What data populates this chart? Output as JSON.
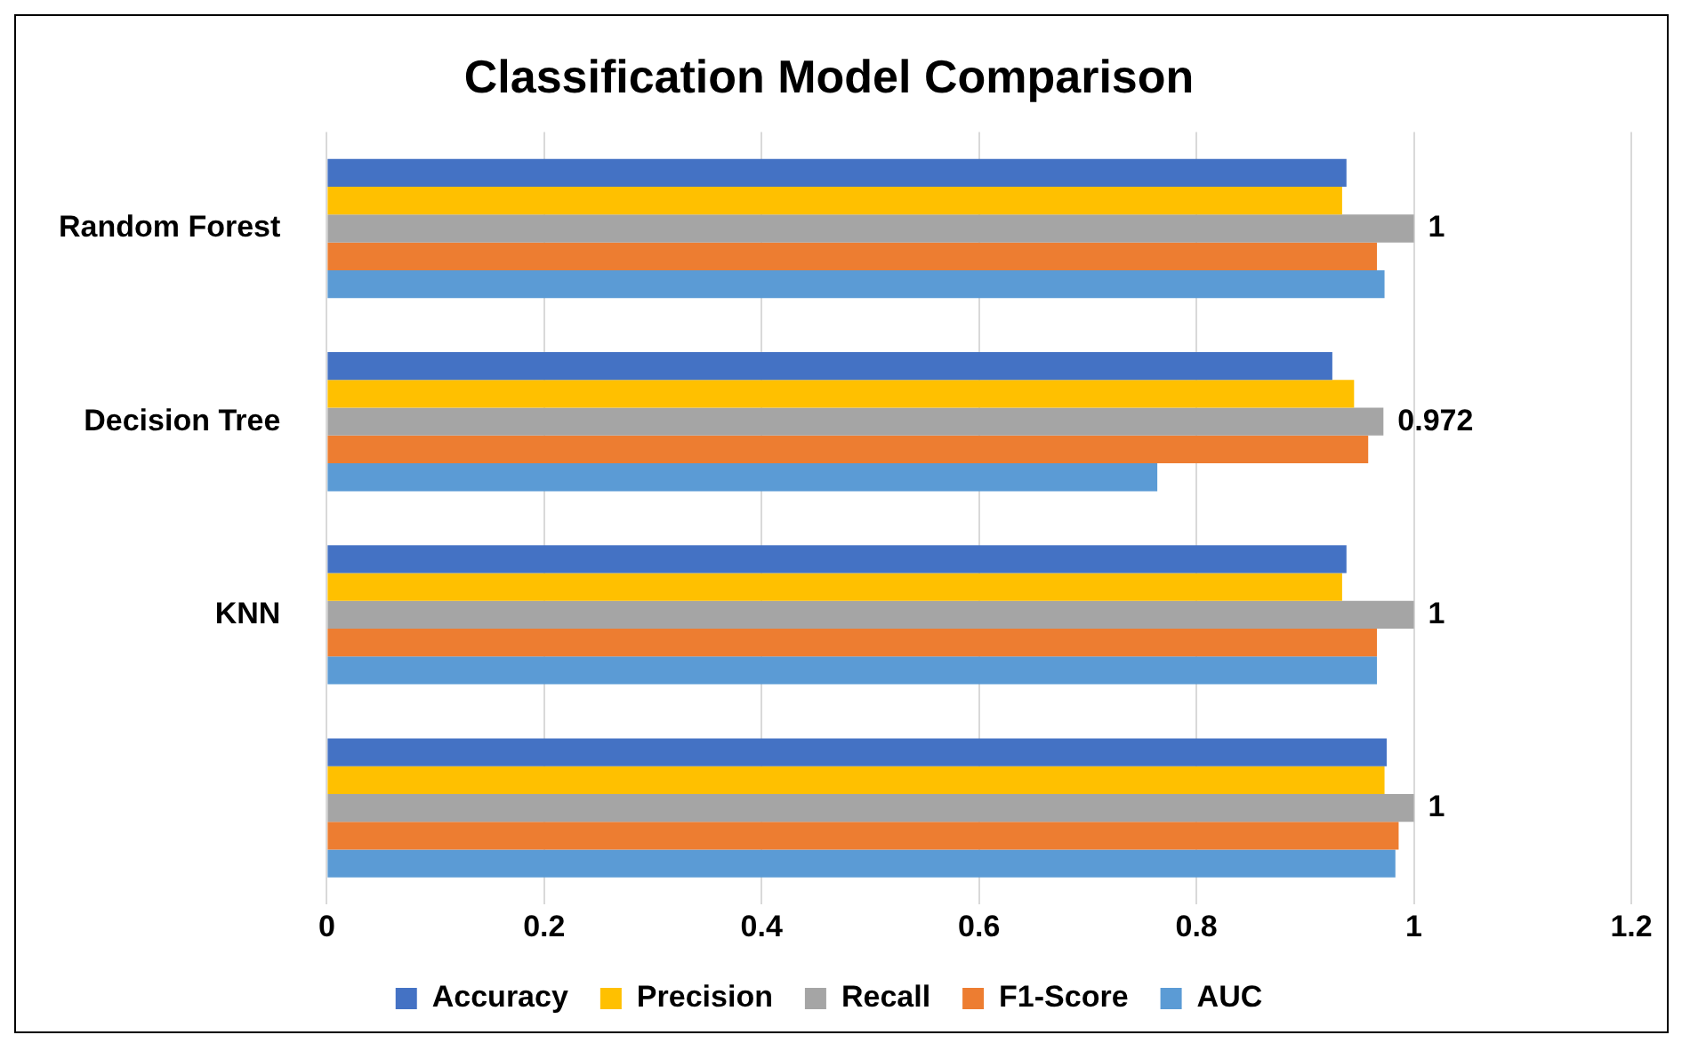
{
  "chart_data": {
    "type": "bar",
    "orientation": "horizontal",
    "title": "Classification Model Comparison",
    "categories": [
      "Random Forest",
      "Decision Tree",
      "KNN",
      null
    ],
    "series": [
      {
        "name": "Accuracy",
        "color": "#4472c4",
        "values": [
          0.938,
          0.925,
          0.938,
          0.975
        ]
      },
      {
        "name": "Precision",
        "color": "#ffc000",
        "values": [
          0.934,
          0.945,
          0.934,
          0.973
        ]
      },
      {
        "name": "Recall",
        "color": "#a5a5a5",
        "values": [
          1,
          0.972,
          1,
          1
        ],
        "value_labels": [
          "1",
          "0.972",
          "1",
          "1"
        ]
      },
      {
        "name": "F1-Score",
        "color": "#ed7d31",
        "values": [
          0.966,
          0.958,
          0.966,
          0.986
        ]
      },
      {
        "name": "AUC",
        "color": "#5b9bd5",
        "values": [
          0.973,
          0.764,
          0.966,
          0.983
        ]
      }
    ],
    "xlim": [
      0,
      1.2
    ],
    "xticks": [
      0,
      0.2,
      0.4,
      0.6,
      0.8,
      1,
      1.2
    ],
    "grid": "x",
    "legend": "bottom"
  }
}
